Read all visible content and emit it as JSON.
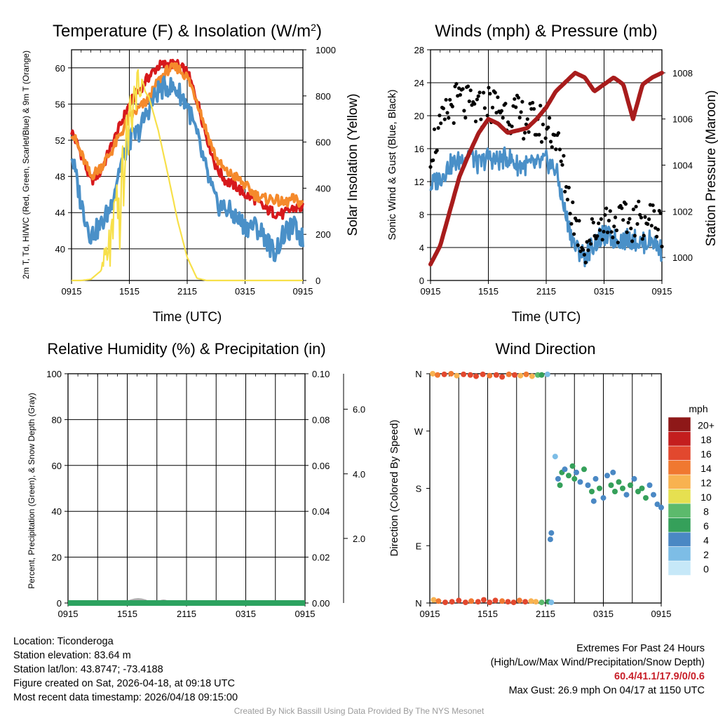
{
  "colors": {
    "t2m": "#d7191c",
    "dewpoint": "#2ca25f",
    "heat_index": "#d7191c",
    "wind_chill": "#4a90c8",
    "t9m": "#f58a2c",
    "insolation": "#f7e04a",
    "wind": "#4a90c8",
    "gust": "#000000",
    "pressure": "#a81c1c",
    "rh": "#2ca25f",
    "precip": "#2ca25f",
    "snow": "#b0b0b0"
  },
  "chart_data": [
    {
      "id": "temperature",
      "type": "line",
      "title": "Temperature (F) & Insolation (W/m²)",
      "xlabel": "Time (UTC)",
      "ylabel": "2m T, T_d, HI/WC (Red, Green, Scarlet/Blue) & 9m T (Orange)",
      "y2label": "Solar Insolation (Yellow)",
      "x_ticks": [
        "0915",
        "1515",
        "2115",
        "0315",
        "0915"
      ],
      "x_range_hours": [
        0,
        24
      ],
      "ylim": [
        36.5,
        62.0
      ],
      "y_ticks": [
        40,
        44,
        48,
        52,
        56,
        60
      ],
      "y2lim": [
        0,
        1000
      ],
      "y2_ticks": [
        0,
        200,
        400,
        600,
        800,
        1000
      ],
      "x": [
        0,
        1,
        2,
        3,
        4,
        5,
        6,
        7,
        8,
        9,
        10,
        11,
        12,
        13,
        14,
        15,
        16,
        17,
        18,
        19,
        20,
        21,
        22,
        23,
        24
      ],
      "series": [
        {
          "name": "2m T",
          "color_key": "t2m",
          "axis": "left",
          "values": [
            53,
            50.5,
            47.5,
            48.5,
            51,
            53.5,
            56,
            57.5,
            59,
            60.2,
            60.4,
            60.3,
            59.5,
            56.5,
            52.5,
            49,
            47.5,
            47,
            46,
            45.5,
            44.5,
            44,
            43.8,
            44.5,
            44.5
          ]
        },
        {
          "name": "9m T",
          "color_key": "t9m",
          "axis": "left",
          "values": [
            53,
            50.5,
            48,
            49,
            50.5,
            52.5,
            54.5,
            55.5,
            56.5,
            58.5,
            59.8,
            60,
            59,
            56.5,
            53,
            50,
            48.5,
            48,
            47,
            46,
            45.5,
            45.5,
            45,
            45.5,
            45
          ]
        },
        {
          "name": "HI/WC",
          "color_key": "wind_chill",
          "axis": "left",
          "values": [
            50.5,
            45,
            41.5,
            42.5,
            44.5,
            49,
            52,
            53,
            55.5,
            57.5,
            58,
            57.5,
            56,
            52.5,
            48.5,
            45,
            44.5,
            43.5,
            42.5,
            42.5,
            41.5,
            39.5,
            41.5,
            42.5,
            41
          ]
        },
        {
          "name": "Solar Insolation",
          "color_key": "insolation",
          "axis": "right",
          "values": [
            0,
            0,
            5,
            40,
            150,
            300,
            700,
            860,
            800,
            650,
            460,
            260,
            100,
            10,
            0,
            0,
            0,
            0,
            0,
            0,
            0,
            0,
            0,
            0,
            0
          ]
        }
      ]
    },
    {
      "id": "winds",
      "type": "line",
      "title": "Winds (mph) & Pressure (mb)",
      "xlabel": "Time (UTC)",
      "ylabel": "Sonic Wind & Gust (Blue, Black)",
      "y2label": "Station Pressure (Maroon)",
      "x_ticks": [
        "0915",
        "1515",
        "2115",
        "0315",
        "0915"
      ],
      "x_range_hours": [
        0,
        24
      ],
      "ylim": [
        0,
        28
      ],
      "y_ticks": [
        0,
        4,
        8,
        12,
        16,
        20,
        24,
        28
      ],
      "y2lim": [
        999.0,
        1009.0
      ],
      "y2_ticks": [
        1000,
        1002,
        1004,
        1006,
        1008
      ],
      "x": [
        0,
        1,
        2,
        3,
        4,
        5,
        6,
        7,
        8,
        9,
        10,
        11,
        12,
        13,
        14,
        15,
        16,
        17,
        18,
        19,
        20,
        21,
        22,
        23,
        24
      ],
      "series": [
        {
          "name": "Sonic Wind",
          "color_key": "wind",
          "axis": "left",
          "values": [
            11.5,
            12.5,
            14,
            14.5,
            15.5,
            14,
            15,
            14.5,
            15,
            14,
            14,
            14,
            14.5,
            13.5,
            8,
            4,
            3,
            4.5,
            5.5,
            5,
            5,
            5,
            4.5,
            5,
            3.5
          ]
        },
        {
          "name": "Gust",
          "color_key": "gust",
          "axis": "left",
          "values": [
            16,
            18,
            21,
            22,
            21,
            20.5,
            21.5,
            21,
            20.5,
            20,
            19.5,
            19,
            19,
            17.5,
            12,
            7,
            4,
            6,
            7.5,
            7,
            7,
            7,
            7.5,
            7.5,
            6.5
          ]
        },
        {
          "name": "Station Pressure",
          "color_key": "pressure",
          "axis": "right",
          "values": [
            999.7,
            1000.5,
            1002,
            1003.5,
            1004.5,
            1005.4,
            1006,
            1005.8,
            1005.4,
            1005.5,
            1005.6,
            1006,
            1006.5,
            1007.2,
            1007.6,
            1008,
            1007.8,
            1007.2,
            1007.5,
            1007.8,
            1007.5,
            1006,
            1007.5,
            1007.8,
            1008
          ]
        }
      ]
    },
    {
      "id": "humidity",
      "type": "area",
      "title": "Relative Humidity (%) & Precipitation (in)",
      "xlabel": "",
      "ylabel": "Percent, Precipitation (Green), & Snow Depth (Gray)",
      "x_ticks": [
        "0915",
        "1515",
        "2115",
        "0315",
        "0915"
      ],
      "x_range_hours": [
        0,
        24
      ],
      "ylim": [
        0,
        100
      ],
      "y_ticks": [
        0,
        20,
        40,
        60,
        80,
        100
      ],
      "y2lim": [
        0,
        0.1
      ],
      "y2_ticks": [
        "0.00",
        "0.02",
        "0.04",
        "0.06",
        "0.08",
        "0.10"
      ],
      "y3_ticks": [
        "2.0",
        "4.0",
        "6.0"
      ],
      "series": [
        {
          "name": "Precipitation",
          "color_key": "precip",
          "values": [
            0,
            0,
            0,
            0,
            0
          ]
        },
        {
          "name": "Snow Depth",
          "color_key": "snow",
          "values": [
            0,
            0,
            0,
            0,
            0
          ]
        }
      ]
    },
    {
      "id": "direction",
      "type": "scatter",
      "title": "Wind Direction",
      "xlabel": "",
      "ylabel": "Direction (Colored By Speed)",
      "x_ticks": [
        "0915",
        "1515",
        "2115",
        "0315",
        "0915"
      ],
      "x_range_hours": [
        0,
        24
      ],
      "y_ticks": [
        "N",
        "E",
        "S",
        "W",
        "N"
      ],
      "ylim_deg": [
        0,
        360
      ],
      "legend_title": "mph",
      "legend_labels": [
        "0",
        "2",
        "4",
        "6",
        "8",
        "10",
        "12",
        "14",
        "16",
        "18",
        "20+"
      ],
      "legend_colors": [
        "#c6e8f8",
        "#7dbde6",
        "#4a88c4",
        "#35a05a",
        "#5cba6c",
        "#e6e050",
        "#f8b250",
        "#f07830",
        "#e2482e",
        "#c41e1e",
        "#8e1818"
      ],
      "points": [
        [
          0.3,
          360,
          12
        ],
        [
          0.8,
          358,
          14
        ],
        [
          1.5,
          359,
          16
        ],
        [
          2.2,
          360,
          14
        ],
        [
          2.8,
          357,
          12
        ],
        [
          3.5,
          359,
          16
        ],
        [
          4.2,
          358,
          15
        ],
        [
          4.8,
          356,
          16
        ],
        [
          5.5,
          359,
          15
        ],
        [
          6.2,
          357,
          14
        ],
        [
          6.9,
          358,
          16
        ],
        [
          7.5,
          355,
          15
        ],
        [
          8.2,
          359,
          14
        ],
        [
          8.8,
          358,
          16
        ],
        [
          9.4,
          357,
          12
        ],
        [
          10.0,
          359,
          14
        ],
        [
          10.6,
          356,
          11
        ],
        [
          11.2,
          358,
          7
        ],
        [
          11.6,
          358,
          5
        ],
        [
          12.2,
          359,
          2
        ],
        [
          0.4,
          5,
          11
        ],
        [
          0.9,
          3,
          14
        ],
        [
          1.6,
          1,
          16
        ],
        [
          2.3,
          2,
          16
        ],
        [
          3.0,
          4,
          15
        ],
        [
          3.7,
          1,
          16
        ],
        [
          4.3,
          3,
          14
        ],
        [
          5.0,
          2,
          16
        ],
        [
          5.6,
          5,
          15
        ],
        [
          6.2,
          1,
          16
        ],
        [
          6.8,
          4,
          15
        ],
        [
          7.5,
          3,
          14
        ],
        [
          8.1,
          2,
          16
        ],
        [
          8.7,
          1,
          15
        ],
        [
          9.3,
          4,
          14
        ],
        [
          9.9,
          2,
          15
        ],
        [
          10.5,
          3,
          12
        ],
        [
          11.0,
          2,
          11
        ],
        [
          11.6,
          1,
          8
        ],
        [
          12.3,
          2,
          5
        ],
        [
          12.6,
          1,
          2
        ],
        [
          12.5,
          100,
          3
        ],
        [
          12.6,
          110,
          4
        ],
        [
          13.0,
          230,
          2
        ],
        [
          13.3,
          195,
          4
        ],
        [
          13.7,
          205,
          5
        ],
        [
          14.0,
          210,
          3
        ],
        [
          14.4,
          200,
          6
        ],
        [
          14.8,
          215,
          5
        ],
        [
          15.2,
          205,
          4
        ],
        [
          15.6,
          190,
          3
        ],
        [
          16.0,
          210,
          6
        ],
        [
          16.4,
          185,
          4
        ],
        [
          16.8,
          175,
          5
        ],
        [
          17.2,
          195,
          4
        ],
        [
          17.6,
          180,
          6
        ],
        [
          18.0,
          165,
          3
        ],
        [
          18.4,
          200,
          4
        ],
        [
          18.8,
          185,
          5
        ],
        [
          19.2,
          175,
          6
        ],
        [
          19.6,
          190,
          5
        ],
        [
          20.0,
          180,
          6
        ],
        [
          20.4,
          170,
          4
        ],
        [
          20.8,
          185,
          5
        ],
        [
          21.2,
          195,
          4
        ],
        [
          21.6,
          175,
          6
        ],
        [
          22.0,
          180,
          5
        ],
        [
          22.4,
          165,
          6
        ],
        [
          22.8,
          185,
          4
        ],
        [
          23.2,
          170,
          3
        ],
        [
          23.6,
          155,
          4
        ],
        [
          24.0,
          150,
          4
        ],
        [
          13.5,
          185,
          5
        ],
        [
          15.0,
          195,
          6
        ],
        [
          17.0,
          160,
          4
        ],
        [
          19.0,
          205,
          3
        ]
      ]
    }
  ],
  "info_left": {
    "location": "Location: Ticonderoga",
    "elevation": "Station elevation: 83.64 m",
    "latlon": "Station lat/lon: 43.8747; -73.4188",
    "created": "Figure created on Sat, 2026-04-18, at 09:18 UTC",
    "recent": "Most recent data timestamp: 2026/04/18 09:15:00"
  },
  "info_right": {
    "heading": "Extremes For Past 24 Hours",
    "subheading": "(High/Low/Max Wind/Precipitation/Snow Depth)",
    "values": "60.4/41.1/17.9/0/0.6",
    "gust": "Max Gust: 26.9 mph On 04/17 at 1150 UTC"
  },
  "credit": "Created By Nick Bassill Using Data Provided By The NYS Mesonet"
}
